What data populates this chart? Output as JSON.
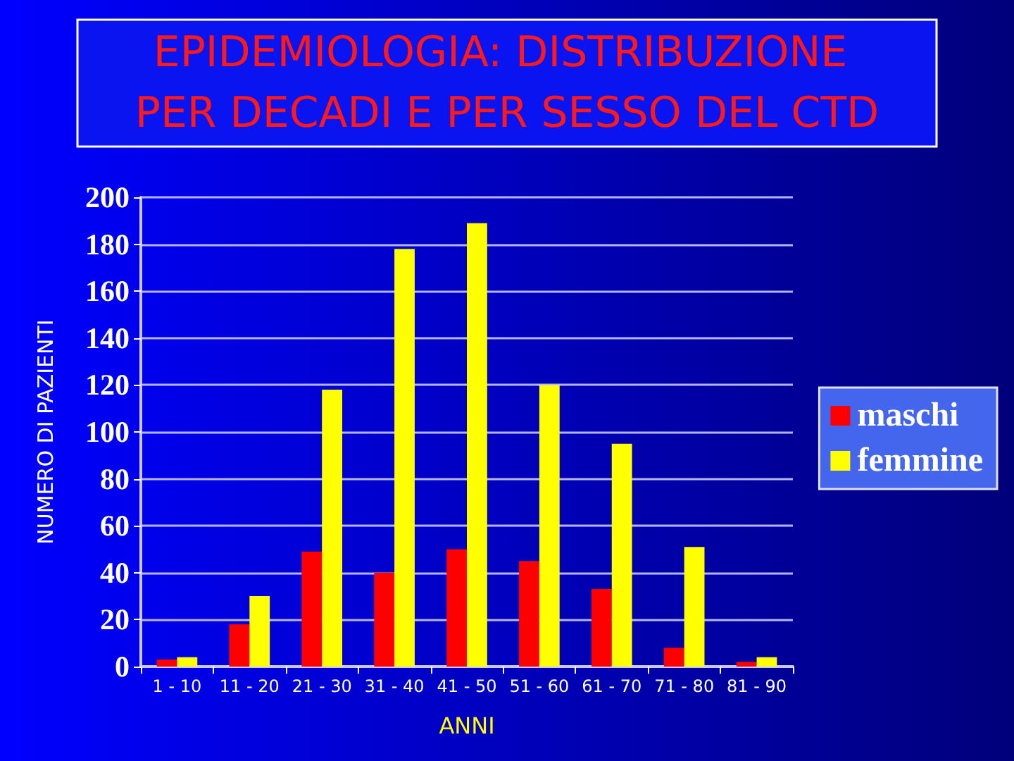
{
  "chart_data": {
    "type": "bar",
    "title": "EPIDEMIOLOGIA: DISTRIBUZIONE PER DECADI E PER SESSO DEL CTD",
    "xlabel": "ANNI",
    "ylabel": "NUMERO DI PAZIENTI",
    "categories": [
      "1 - 10",
      "11 - 20",
      "21 - 30",
      "31 - 40",
      "41 - 50",
      "51 - 60",
      "61 - 70",
      "71 - 80",
      "81 - 90"
    ],
    "series": [
      {
        "name": "maschi",
        "color": "#ff0000",
        "values": [
          3,
          18,
          49,
          40,
          50,
          45,
          33,
          8,
          2
        ]
      },
      {
        "name": "femmine",
        "color": "#ffff00",
        "values": [
          4,
          30,
          118,
          178,
          189,
          120,
          95,
          51,
          4
        ]
      }
    ],
    "ylim": [
      0,
      200
    ],
    "yticks": [
      0,
      20,
      40,
      60,
      80,
      100,
      120,
      140,
      160,
      180,
      200
    ],
    "grid": "y",
    "legend": "right"
  }
}
